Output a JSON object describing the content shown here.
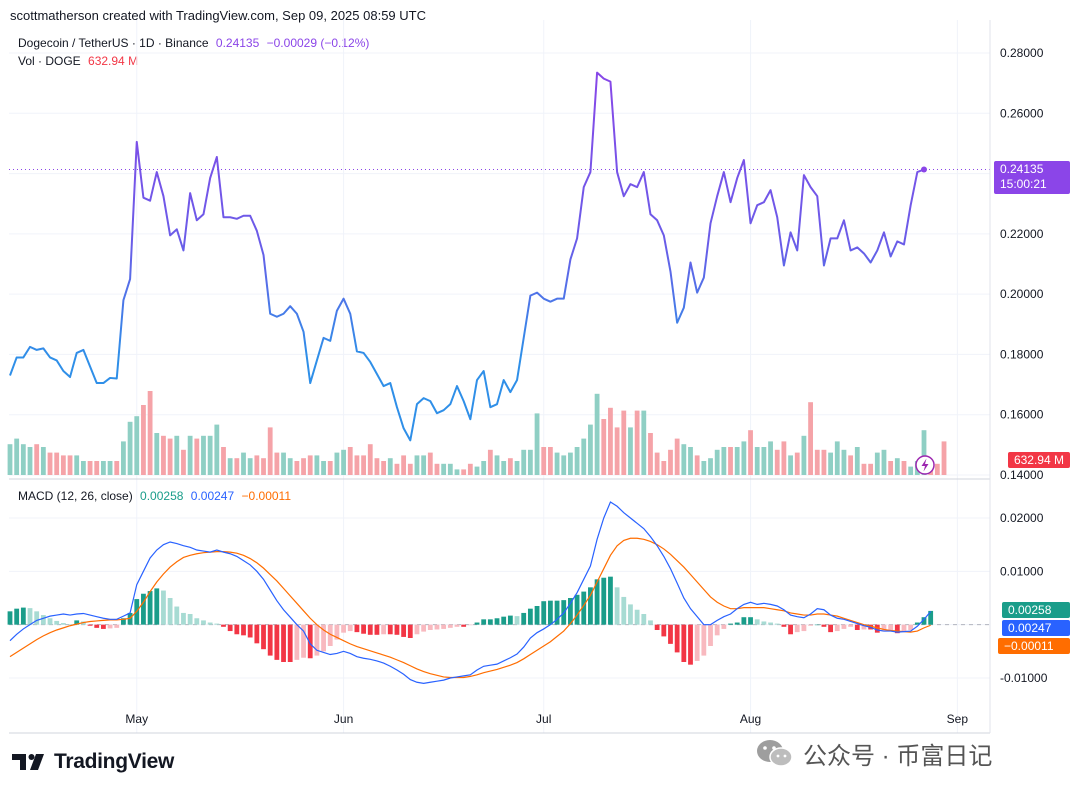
{
  "header": {
    "credit": "scottmatherson created with TradingView.com, Sep 09, 2025 08:59 UTC"
  },
  "legend": {
    "pair": "Dogecoin / TetherUS · 1D · Binance",
    "price": "0.24135",
    "change": "−0.00029 (−0.12%)",
    "vol_label": "Vol · DOGE",
    "vol_value": "632.94 M",
    "macd_label": "MACD (12, 26, close)",
    "macd_hist": "0.00258",
    "macd_line": "0.00247",
    "macd_signal": "−0.00011"
  },
  "tags": {
    "price": "0.24135",
    "countdown": "15:00:21",
    "volume": "632.94 M",
    "hist": "0.00258",
    "macd": "0.00247",
    "signal": "−0.00011"
  },
  "colors": {
    "price_purple": "#8b45e8",
    "price_blue": "#2f8fe8",
    "vol_up": "#8fcfc4",
    "vol_down": "#f5a3a8",
    "hist_up_strong": "#1a9d8a",
    "hist_up_weak": "#a7dbd3",
    "hist_down_strong": "#f23645",
    "hist_down_weak": "#f8b9bf",
    "macd_line": "#2962ff",
    "signal_line": "#ff6d00"
  },
  "branding": {
    "logo_text": "TradingView",
    "watermark": "公众号 · 币富日记"
  },
  "chart_data": [
    {
      "type": "line",
      "title": "Dogecoin / TetherUS · 1D · Binance",
      "x_ticks": [
        "May",
        "Jun",
        "Jul",
        "Aug",
        "Sep"
      ],
      "y_ticks": [
        "0.28000",
        "0.26000",
        "0.24000",
        "0.22000",
        "0.20000",
        "0.18000",
        "0.16000",
        "0.14000"
      ],
      "ylim": [
        0.14,
        0.28
      ],
      "x_range": [
        "2025-04-12",
        "2025-09-09"
      ],
      "series": [
        {
          "name": "close",
          "values": [
            0.173,
            0.179,
            0.179,
            0.1825,
            0.1815,
            0.182,
            0.179,
            0.178,
            0.1745,
            0.1725,
            0.1805,
            0.1815,
            0.176,
            0.1705,
            0.1705,
            0.1722,
            0.172,
            0.198,
            0.205,
            0.2505,
            0.232,
            0.231,
            0.2405,
            0.2325,
            0.2195,
            0.2215,
            0.2145,
            0.2335,
            0.2245,
            0.2265,
            0.2385,
            0.2455,
            0.2255,
            0.2255,
            0.225,
            0.226,
            0.226,
            0.221,
            0.213,
            0.1935,
            0.1925,
            0.1935,
            0.196,
            0.1935,
            0.1875,
            0.1705,
            0.178,
            0.1855,
            0.1845,
            0.1945,
            0.1985,
            0.1935,
            0.181,
            0.1805,
            0.1775,
            0.1735,
            0.1695,
            0.1705,
            0.1625,
            0.1555,
            0.1515,
            0.1635,
            0.1655,
            0.1645,
            0.1605,
            0.1615,
            0.1635,
            0.1695,
            0.1645,
            0.1585,
            0.1715,
            0.1745,
            0.1625,
            0.1635,
            0.1715,
            0.1675,
            0.1715,
            0.1855,
            0.1995,
            0.2005,
            0.1985,
            0.1975,
            0.1985,
            0.1985,
            0.2115,
            0.2185,
            0.2355,
            0.2405,
            0.2735,
            0.2715,
            0.2705,
            0.2405,
            0.2325,
            0.2365,
            0.2355,
            0.2405,
            0.2265,
            0.2245,
            0.2195,
            0.2075,
            0.1905,
            0.1955,
            0.2105,
            0.2005,
            0.2055,
            0.2235,
            0.2325,
            0.2405,
            0.2305,
            0.2385,
            0.2445,
            0.2235,
            0.2295,
            0.2305,
            0.2345,
            0.2255,
            0.2095,
            0.2205,
            0.2145,
            0.2395,
            0.2355,
            0.2325,
            0.2095,
            0.2185,
            0.2185,
            0.2245,
            0.2145,
            0.2155,
            0.2135,
            0.2105,
            0.2145,
            0.2205,
            0.2125,
            0.2175,
            0.2165,
            0.2295,
            0.2405,
            0.24135
          ]
        }
      ]
    },
    {
      "type": "bar",
      "title": "Vol · DOGE",
      "values": [
        11,
        13,
        11,
        10,
        11,
        10,
        8,
        8,
        7,
        7,
        7,
        5,
        5,
        5,
        5,
        5,
        5,
        12,
        19,
        21,
        25,
        30,
        15,
        14,
        13,
        14,
        9,
        14,
        13,
        14,
        14,
        18,
        10,
        6,
        6,
        8,
        6,
        7,
        6,
        17,
        8,
        8,
        6,
        5,
        6,
        7,
        7,
        5,
        5,
        8,
        9,
        10,
        7,
        7,
        11,
        6,
        5,
        6,
        4,
        7,
        4,
        7,
        7,
        8,
        4,
        4,
        4,
        2,
        2,
        4,
        3,
        5,
        9,
        7,
        5,
        6,
        5,
        9,
        9,
        22,
        10,
        10,
        8,
        7,
        8,
        10,
        13,
        18,
        29,
        20,
        24,
        17,
        23,
        17,
        23,
        23,
        15,
        8,
        5,
        9,
        13,
        11,
        10,
        7,
        5,
        6,
        9,
        10,
        10,
        10,
        12,
        16,
        10,
        10,
        12,
        9,
        12,
        7,
        8,
        14,
        26,
        9,
        9,
        8,
        12,
        9,
        7,
        10,
        4,
        4,
        8,
        9,
        5,
        6,
        5,
        3,
        5,
        16,
        4,
        4,
        12
      ]
    },
    {
      "type": "bar",
      "title": "MACD (12, 26, close)",
      "y_ticks": [
        "0.02000",
        "0.01000",
        "0.00000",
        "-0.01000"
      ],
      "ylim": [
        -0.0145,
        0.0245
      ],
      "series": [
        {
          "name": "histogram",
          "values": [
            0.0025,
            0.003,
            0.0032,
            0.0031,
            0.0025,
            0.0018,
            0.0012,
            0.0007,
            0.0003,
            0.0001,
            0.0008,
            0.0006,
            -0.0002,
            -0.0006,
            -0.0008,
            -0.0007,
            -0.0006,
            0.0012,
            0.0022,
            0.0048,
            0.0058,
            0.0063,
            0.0068,
            0.0064,
            0.005,
            0.0034,
            0.0022,
            0.002,
            0.0012,
            0.0008,
            0.0004,
            0.0002,
            -0.0004,
            -0.0012,
            -0.0018,
            -0.002,
            -0.0024,
            -0.0035,
            -0.0046,
            -0.0058,
            -0.0066,
            -0.007,
            -0.007,
            -0.0066,
            -0.0062,
            -0.0063,
            -0.0058,
            -0.005,
            -0.004,
            -0.0028,
            -0.0015,
            -0.0012,
            -0.0014,
            -0.0017,
            -0.0019,
            -0.0019,
            -0.0018,
            -0.0018,
            -0.0019,
            -0.0023,
            -0.0025,
            -0.0018,
            -0.0013,
            -0.001,
            -0.0009,
            -0.0008,
            -0.0006,
            -0.0004,
            -0.0004,
            -0.0001,
            0.0004,
            0.001,
            0.001,
            0.0012,
            0.0015,
            0.0017,
            0.0016,
            0.0022,
            0.003,
            0.0035,
            0.0044,
            0.0045,
            0.0045,
            0.0046,
            0.005,
            0.0056,
            0.0062,
            0.007,
            0.0085,
            0.0088,
            0.009,
            0.007,
            0.0052,
            0.0038,
            0.0028,
            0.002,
            0.0008,
            -0.001,
            -0.0022,
            -0.0036,
            -0.0052,
            -0.007,
            -0.0075,
            -0.0068,
            -0.0058,
            -0.004,
            -0.002,
            -0.0008,
            0.0002,
            0.0004,
            0.0014,
            0.0014,
            0.001,
            0.0006,
            0.0004,
            0.0002,
            -0.0004,
            -0.0018,
            -0.0014,
            -0.0012,
            -0.0002,
            0.0,
            -0.0004,
            -0.0014,
            -0.0012,
            -0.0008,
            -0.0004,
            -0.001,
            -0.0009,
            -0.0009,
            -0.0015,
            -0.0013,
            -0.001,
            -0.0016,
            -0.0012,
            -0.001,
            0.0004,
            0.0014,
            0.00258
          ]
        },
        {
          "name": "macd",
          "values": [
            -0.003,
            -0.0018,
            -0.0008,
            0.0,
            0.0008,
            0.0012,
            0.0016,
            0.0018,
            0.002,
            0.0018,
            0.002,
            0.0021,
            0.0018,
            0.0015,
            0.0012,
            0.001,
            0.001,
            0.0016,
            0.0022,
            0.0075,
            0.01,
            0.0125,
            0.014,
            0.015,
            0.0155,
            0.0152,
            0.0148,
            0.0145,
            0.014,
            0.0138,
            0.0136,
            0.014,
            0.0136,
            0.0133,
            0.0128,
            0.012,
            0.0112,
            0.01,
            0.0085,
            0.0065,
            0.0045,
            0.0028,
            0.0014,
            0.0,
            -0.0012,
            -0.0036,
            -0.0048,
            -0.0052,
            -0.0056,
            -0.0054,
            -0.005,
            -0.0054,
            -0.006,
            -0.0063,
            -0.0065,
            -0.0068,
            -0.0072,
            -0.0078,
            -0.0085,
            -0.0093,
            -0.0103,
            -0.0108,
            -0.011,
            -0.0108,
            -0.0106,
            -0.0104,
            -0.01,
            -0.0098,
            -0.0096,
            -0.0094,
            -0.0085,
            -0.0078,
            -0.0076,
            -0.0074,
            -0.0068,
            -0.0062,
            -0.0055,
            -0.0042,
            -0.0025,
            -0.0015,
            -0.0008,
            0.0,
            0.001,
            0.0022,
            0.004,
            0.006,
            0.0085,
            0.011,
            0.016,
            0.02,
            0.023,
            0.0222,
            0.021,
            0.02,
            0.019,
            0.018,
            0.0165,
            0.0148,
            0.0128,
            0.0105,
            0.0078,
            0.005,
            0.003,
            0.0015,
            0.0,
            0.0,
            0.0008,
            0.0015,
            0.002,
            0.003,
            0.0038,
            0.0042,
            0.0038,
            0.004,
            0.0038,
            0.0035,
            0.0028,
            0.0018,
            0.0015,
            0.0013,
            0.002,
            0.003,
            0.0028,
            0.0018,
            0.0012,
            0.001,
            0.0006,
            0.0002,
            -0.0002,
            -0.0005,
            -0.001,
            -0.0012,
            -0.0012,
            -0.0014,
            -0.0013,
            -0.0012,
            -0.0003,
            0.001,
            0.00247
          ]
        },
        {
          "name": "signal",
          "values": [
            -0.006,
            -0.0052,
            -0.0044,
            -0.0036,
            -0.0028,
            -0.0021,
            -0.0015,
            -0.001,
            -0.0006,
            -0.0002,
            0.0001,
            0.0004,
            0.0006,
            0.0007,
            0.0008,
            0.0009,
            0.0009,
            0.001,
            0.0012,
            0.0025,
            0.0042,
            0.0062,
            0.008,
            0.0095,
            0.0108,
            0.0118,
            0.0126,
            0.013,
            0.0133,
            0.0135,
            0.0136,
            0.0137,
            0.0137,
            0.0136,
            0.0134,
            0.013,
            0.0124,
            0.0116,
            0.0106,
            0.0094,
            0.0082,
            0.0068,
            0.0054,
            0.004,
            0.0026,
            0.0012,
            0.0,
            -0.001,
            -0.0018,
            -0.0024,
            -0.003,
            -0.0036,
            -0.0041,
            -0.0045,
            -0.0049,
            -0.0053,
            -0.0057,
            -0.0061,
            -0.0066,
            -0.0071,
            -0.0077,
            -0.0083,
            -0.0088,
            -0.0092,
            -0.0095,
            -0.0098,
            -0.0099,
            -0.0099,
            -0.0099,
            -0.0097,
            -0.0094,
            -0.009,
            -0.0087,
            -0.0084,
            -0.008,
            -0.0076,
            -0.0071,
            -0.0064,
            -0.0056,
            -0.0048,
            -0.004,
            -0.0032,
            -0.0022,
            -0.0012,
            0.0002,
            0.0018,
            0.0036,
            0.0055,
            0.008,
            0.0105,
            0.013,
            0.0148,
            0.0158,
            0.0162,
            0.0162,
            0.016,
            0.0156,
            0.015,
            0.0142,
            0.0132,
            0.012,
            0.0108,
            0.0094,
            0.008,
            0.0066,
            0.0052,
            0.0042,
            0.0035,
            0.003,
            0.003,
            0.0032,
            0.0032,
            0.0032,
            0.0032,
            0.003,
            0.0028,
            0.0026,
            0.0022,
            0.002,
            0.0018,
            0.0018,
            0.002,
            0.002,
            0.0018,
            0.0016,
            0.0012,
            0.0008,
            0.0004,
            0.0,
            -0.0003,
            -0.0006,
            -0.0009,
            -0.0011,
            -0.0012,
            -0.0013,
            -0.0014,
            -0.0012,
            -0.0006,
            -0.00011
          ]
        }
      ]
    }
  ]
}
